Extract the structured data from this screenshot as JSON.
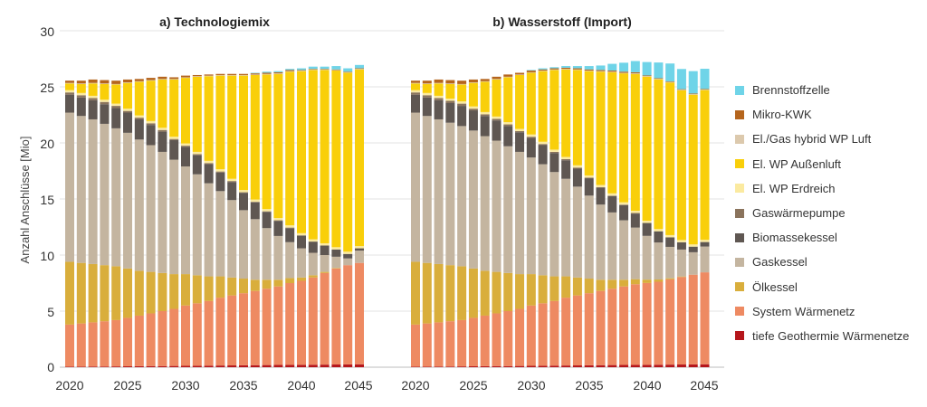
{
  "figure": {
    "ylabel": "Anzahl Anschlüsse [Mio]",
    "ytick_labels": [
      "0",
      "5",
      "10",
      "15",
      "20",
      "25",
      "30"
    ],
    "xtick_labels": [
      "2020",
      "2025",
      "2030",
      "2035",
      "2040",
      "2045"
    ]
  },
  "legend": {
    "items": [
      {
        "label": "Brennstoffzelle",
        "color": "#6fd4e8"
      },
      {
        "label": "Mikro-KWK",
        "color": "#b5651d"
      },
      {
        "label": "El./Gas hybrid WP Luft",
        "color": "#dcc9ad"
      },
      {
        "label": "El. WP Außenluft",
        "color": "#f9cf0a"
      },
      {
        "label": "El. WP Erdreich",
        "color": "#fbeaa0"
      },
      {
        "label": "Gaswärmepumpe",
        "color": "#8a735c"
      },
      {
        "label": "Biomassekessel",
        "color": "#5f5752"
      },
      {
        "label": "Gaskessel",
        "color": "#c4b5a0"
      },
      {
        "label": "Ölkessel",
        "color": "#d9ae3c"
      },
      {
        "label": "System Wärmenetz",
        "color": "#ee8a62"
      },
      {
        "label": "tiefe Geothermie Wärmenetze",
        "color": "#b5161b"
      }
    ]
  },
  "chart_data": [
    {
      "type": "bar",
      "stacked": true,
      "title": "a) Technologiemix",
      "ylabel": "Anzahl Anschlüsse [Mio]",
      "ylim": [
        0,
        30
      ],
      "grid": true,
      "legend_position": "right",
      "categories": [
        2020,
        2021,
        2022,
        2023,
        2024,
        2025,
        2026,
        2027,
        2028,
        2029,
        2030,
        2031,
        2032,
        2033,
        2034,
        2035,
        2036,
        2037,
        2038,
        2039,
        2040,
        2041,
        2042,
        2043,
        2044,
        2045
      ],
      "series": [
        {
          "name": "tiefe Geothermie Wärmenetze",
          "values": [
            0.05,
            0.05,
            0.06,
            0.06,
            0.07,
            0.08,
            0.09,
            0.1,
            0.1,
            0.11,
            0.12,
            0.13,
            0.14,
            0.15,
            0.16,
            0.17,
            0.18,
            0.19,
            0.2,
            0.2,
            0.21,
            0.22,
            0.23,
            0.24,
            0.25,
            0.26
          ]
        },
        {
          "name": "System Wärmenetz",
          "values": [
            3.75,
            3.85,
            3.94,
            4.04,
            4.13,
            4.32,
            4.51,
            4.7,
            4.9,
            5.09,
            5.38,
            5.57,
            5.76,
            6.05,
            6.24,
            6.43,
            6.62,
            6.81,
            7.0,
            7.3,
            7.49,
            7.78,
            8.17,
            8.56,
            8.85,
            9.04
          ]
        },
        {
          "name": "Ölkessel",
          "values": [
            5.6,
            5.4,
            5.2,
            5.0,
            4.8,
            4.4,
            4.0,
            3.7,
            3.4,
            3.1,
            2.8,
            2.5,
            2.2,
            1.9,
            1.6,
            1.3,
            1.0,
            0.8,
            0.6,
            0.45,
            0.3,
            0.2,
            0.1,
            0.05,
            0.0,
            0.0
          ]
        },
        {
          "name": "Gaskessel",
          "values": [
            13.3,
            13.1,
            12.9,
            12.6,
            12.3,
            12.1,
            11.7,
            11.3,
            10.8,
            10.2,
            9.6,
            9.0,
            8.3,
            7.6,
            6.9,
            6.1,
            5.4,
            4.6,
            3.9,
            3.2,
            2.6,
            2.0,
            1.5,
            1.0,
            0.6,
            1.1
          ]
        },
        {
          "name": "Biomassekessel",
          "values": [
            1.6,
            1.65,
            1.7,
            1.75,
            1.8,
            1.8,
            1.8,
            1.8,
            1.8,
            1.75,
            1.75,
            1.7,
            1.7,
            1.65,
            1.6,
            1.55,
            1.5,
            1.45,
            1.35,
            1.25,
            1.15,
            1.0,
            0.85,
            0.65,
            0.4,
            0.2
          ]
        },
        {
          "name": "Gaswärmepumpe",
          "values": [
            0.2,
            0.2,
            0.2,
            0.2,
            0.2,
            0.15,
            0.15,
            0.15,
            0.15,
            0.1,
            0.1,
            0.1,
            0.1,
            0.1,
            0.1,
            0.05,
            0.05,
            0.05,
            0.05,
            0.05,
            0.0,
            0.0,
            0.0,
            0.0,
            0.0,
            0.0
          ]
        },
        {
          "name": "El. WP Erdreich",
          "values": [
            0.2,
            0.2,
            0.2,
            0.2,
            0.2,
            0.2,
            0.2,
            0.2,
            0.2,
            0.2,
            0.2,
            0.2,
            0.2,
            0.2,
            0.2,
            0.2,
            0.2,
            0.2,
            0.2,
            0.2,
            0.2,
            0.2,
            0.2,
            0.2,
            0.2,
            0.2
          ]
        },
        {
          "name": "El. WP Außenluft",
          "values": [
            0.6,
            0.8,
            1.1,
            1.4,
            1.7,
            2.3,
            3.0,
            3.6,
            4.3,
            5.1,
            5.85,
            6.7,
            7.55,
            8.35,
            9.2,
            10.2,
            11.1,
            12.0,
            12.85,
            13.7,
            14.45,
            15.1,
            15.45,
            15.75,
            15.95,
            15.75
          ]
        },
        {
          "name": "El./Gas hybrid WP Luft",
          "values": [
            0.05,
            0.05,
            0.05,
            0.05,
            0.05,
            0.05,
            0.05,
            0.05,
            0.05,
            0.05,
            0.05,
            0.05,
            0.05,
            0.05,
            0.05,
            0.05,
            0.05,
            0.05,
            0.05,
            0.05,
            0.05,
            0.05,
            0.05,
            0.05,
            0.05,
            0.05
          ]
        },
        {
          "name": "Mikro-KWK",
          "values": [
            0.2,
            0.25,
            0.3,
            0.3,
            0.3,
            0.25,
            0.2,
            0.2,
            0.2,
            0.15,
            0.15,
            0.1,
            0.1,
            0.1,
            0.1,
            0.1,
            0.1,
            0.1,
            0.1,
            0.1,
            0.05,
            0.05,
            0.05,
            0.05,
            0.05,
            0.05
          ]
        },
        {
          "name": "Brennstoffzelle",
          "values": [
            0.0,
            0.0,
            0.0,
            0.0,
            0.0,
            0.0,
            0.0,
            0.0,
            0.0,
            0.0,
            0.0,
            0.0,
            0.0,
            0.0,
            0.0,
            0.0,
            0.05,
            0.1,
            0.1,
            0.1,
            0.15,
            0.2,
            0.2,
            0.3,
            0.3,
            0.3
          ]
        }
      ]
    },
    {
      "type": "bar",
      "stacked": true,
      "title": "b) Wasserstoff (Import)",
      "ylabel": "Anzahl Anschlüsse [Mio]",
      "ylim": [
        0,
        30
      ],
      "grid": true,
      "legend_position": "right",
      "categories": [
        2020,
        2021,
        2022,
        2023,
        2024,
        2025,
        2026,
        2027,
        2028,
        2029,
        2030,
        2031,
        2032,
        2033,
        2034,
        2035,
        2036,
        2037,
        2038,
        2039,
        2040,
        2041,
        2042,
        2043,
        2044,
        2045
      ],
      "series": [
        {
          "name": "tiefe Geothermie Wärmenetze",
          "values": [
            0.05,
            0.05,
            0.06,
            0.06,
            0.07,
            0.08,
            0.09,
            0.1,
            0.1,
            0.11,
            0.12,
            0.13,
            0.14,
            0.15,
            0.16,
            0.17,
            0.18,
            0.19,
            0.2,
            0.2,
            0.21,
            0.22,
            0.23,
            0.24,
            0.25,
            0.26
          ]
        },
        {
          "name": "System Wärmenetz",
          "values": [
            3.75,
            3.85,
            3.94,
            4.04,
            4.13,
            4.32,
            4.51,
            4.7,
            4.9,
            5.09,
            5.38,
            5.57,
            5.76,
            6.05,
            6.24,
            6.43,
            6.62,
            6.81,
            7.0,
            7.2,
            7.3,
            7.4,
            7.6,
            7.8,
            8.0,
            8.2
          ]
        },
        {
          "name": "Ölkessel",
          "values": [
            5.6,
            5.4,
            5.2,
            5.0,
            4.8,
            4.4,
            4.0,
            3.7,
            3.4,
            3.1,
            2.8,
            2.5,
            2.2,
            1.9,
            1.6,
            1.3,
            1.0,
            0.8,
            0.6,
            0.45,
            0.3,
            0.2,
            0.1,
            0.05,
            0.0,
            0.0
          ]
        },
        {
          "name": "Gaskessel",
          "values": [
            13.3,
            13.1,
            12.9,
            12.7,
            12.5,
            12.3,
            12.0,
            11.7,
            11.3,
            10.9,
            10.4,
            9.9,
            9.3,
            8.7,
            8.1,
            7.4,
            6.7,
            6.0,
            5.3,
            4.6,
            3.9,
            3.3,
            2.8,
            2.4,
            2.0,
            2.3
          ]
        },
        {
          "name": "Biomassekessel",
          "values": [
            1.6,
            1.65,
            1.7,
            1.75,
            1.8,
            1.8,
            1.8,
            1.8,
            1.8,
            1.75,
            1.75,
            1.7,
            1.7,
            1.65,
            1.6,
            1.55,
            1.5,
            1.45,
            1.35,
            1.25,
            1.15,
            1.0,
            0.85,
            0.65,
            0.5,
            0.4
          ]
        },
        {
          "name": "Gaswärmepumpe",
          "values": [
            0.2,
            0.2,
            0.2,
            0.2,
            0.2,
            0.15,
            0.15,
            0.15,
            0.15,
            0.1,
            0.1,
            0.1,
            0.1,
            0.1,
            0.1,
            0.05,
            0.05,
            0.05,
            0.05,
            0.05,
            0.0,
            0.0,
            0.0,
            0.0,
            0.0,
            0.0
          ]
        },
        {
          "name": "El. WP Erdreich",
          "values": [
            0.2,
            0.2,
            0.2,
            0.2,
            0.2,
            0.2,
            0.2,
            0.2,
            0.2,
            0.2,
            0.2,
            0.2,
            0.2,
            0.2,
            0.2,
            0.2,
            0.2,
            0.2,
            0.2,
            0.2,
            0.2,
            0.2,
            0.2,
            0.2,
            0.2,
            0.2
          ]
        },
        {
          "name": "El. WP Außenluft",
          "values": [
            0.6,
            0.8,
            1.1,
            1.3,
            1.5,
            2.1,
            2.7,
            3.3,
            4.0,
            4.8,
            5.5,
            6.3,
            7.1,
            7.8,
            8.5,
            9.3,
            10.1,
            10.8,
            11.5,
            12.2,
            12.85,
            13.35,
            13.6,
            13.35,
            13.35,
            13.35
          ]
        },
        {
          "name": "El./Gas hybrid WP Luft",
          "values": [
            0.05,
            0.05,
            0.05,
            0.05,
            0.05,
            0.05,
            0.05,
            0.05,
            0.05,
            0.05,
            0.05,
            0.05,
            0.05,
            0.05,
            0.05,
            0.05,
            0.05,
            0.05,
            0.05,
            0.05,
            0.05,
            0.05,
            0.05,
            0.05,
            0.05,
            0.05
          ]
        },
        {
          "name": "Mikro-KWK",
          "values": [
            0.2,
            0.25,
            0.3,
            0.3,
            0.3,
            0.25,
            0.2,
            0.2,
            0.2,
            0.15,
            0.15,
            0.1,
            0.1,
            0.1,
            0.1,
            0.1,
            0.1,
            0.1,
            0.1,
            0.1,
            0.05,
            0.05,
            0.05,
            0.05,
            0.05,
            0.05
          ]
        },
        {
          "name": "Brennstoffzelle",
          "values": [
            0.0,
            0.0,
            0.0,
            0.0,
            0.0,
            0.0,
            0.0,
            0.0,
            0.0,
            0.0,
            0.05,
            0.1,
            0.1,
            0.15,
            0.2,
            0.3,
            0.4,
            0.6,
            0.8,
            1.0,
            1.2,
            1.4,
            1.6,
            1.8,
            2.0,
            1.8
          ]
        }
      ]
    }
  ]
}
